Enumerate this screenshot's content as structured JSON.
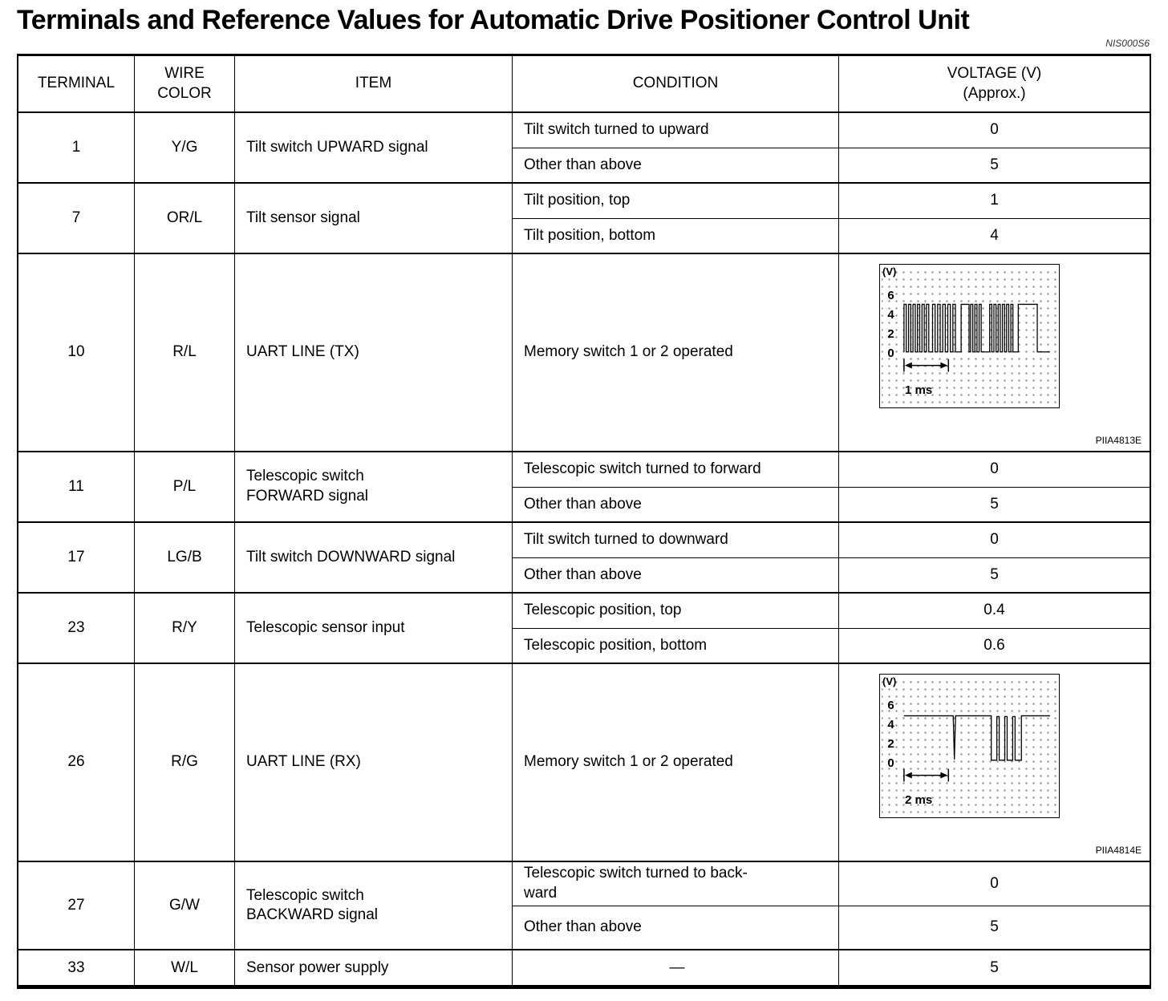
{
  "page": {
    "title": "Terminals and Reference Values for Automatic Drive Positioner Control Unit",
    "ref_code": "NIS000S6"
  },
  "table": {
    "headers": {
      "terminal": "TERMINAL",
      "wire_color": "WIRE\nCOLOR",
      "item": "ITEM",
      "condition": "CONDITION",
      "voltage": "VOLTAGE (V)\n(Approx.)"
    },
    "rows": [
      {
        "terminal": "1",
        "wire_color": "Y/G",
        "item": "Tilt switch UPWARD signal",
        "conditions": [
          {
            "condition": "Tilt switch turned to upward",
            "voltage": "0"
          },
          {
            "condition": "Other than above",
            "voltage": "5"
          }
        ]
      },
      {
        "terminal": "7",
        "wire_color": "OR/L",
        "item": "Tilt sensor signal",
        "conditions": [
          {
            "condition": "Tilt position, top",
            "voltage": "1"
          },
          {
            "condition": "Tilt position, bottom",
            "voltage": "4"
          }
        ]
      },
      {
        "terminal": "10",
        "wire_color": "R/L",
        "item": "UART LINE (TX)",
        "conditions": [
          {
            "condition": "Memory switch 1 or 2 operated",
            "waveform": {
              "unit_label": "(V)",
              "y_ticks": [
                "6",
                "4",
                "2",
                "0"
              ],
              "time_label": "1 ms",
              "figure_code": "PIIA4813E",
              "type": "tx"
            }
          }
        ]
      },
      {
        "terminal": "11",
        "wire_color": "P/L",
        "item": "Telescopic switch\nFORWARD signal",
        "conditions": [
          {
            "condition": "Telescopic switch turned to forward",
            "voltage": "0"
          },
          {
            "condition": "Other than above",
            "voltage": "5"
          }
        ]
      },
      {
        "terminal": "17",
        "wire_color": "LG/B",
        "item": "Tilt switch DOWNWARD signal",
        "conditions": [
          {
            "condition": "Tilt switch turned to downward",
            "voltage": "0"
          },
          {
            "condition": "Other than above",
            "voltage": "5"
          }
        ]
      },
      {
        "terminal": "23",
        "wire_color": "R/Y",
        "item": "Telescopic sensor input",
        "conditions": [
          {
            "condition": "Telescopic position, top",
            "voltage": "0.4"
          },
          {
            "condition": "Telescopic position, bottom",
            "voltage": "0.6"
          }
        ]
      },
      {
        "terminal": "26",
        "wire_color": "R/G",
        "item": "UART LINE (RX)",
        "conditions": [
          {
            "condition": "Memory switch 1 or 2 operated",
            "waveform": {
              "unit_label": "(V)",
              "y_ticks": [
                "6",
                "4",
                "2",
                "0"
              ],
              "time_label": "2 ms",
              "figure_code": "PIIA4814E",
              "type": "rx"
            }
          }
        ]
      },
      {
        "terminal": "27",
        "wire_color": "G/W",
        "item": "Telescopic switch\nBACKWARD signal",
        "conditions": [
          {
            "condition": "Telescopic switch turned to back-\nward",
            "voltage": "0"
          },
          {
            "condition": "Other than above",
            "voltage": "5"
          }
        ]
      },
      {
        "terminal": "33",
        "wire_color": "W/L",
        "item": "Sensor power supply",
        "conditions": [
          {
            "condition": "—",
            "voltage": "5"
          }
        ]
      }
    ]
  }
}
